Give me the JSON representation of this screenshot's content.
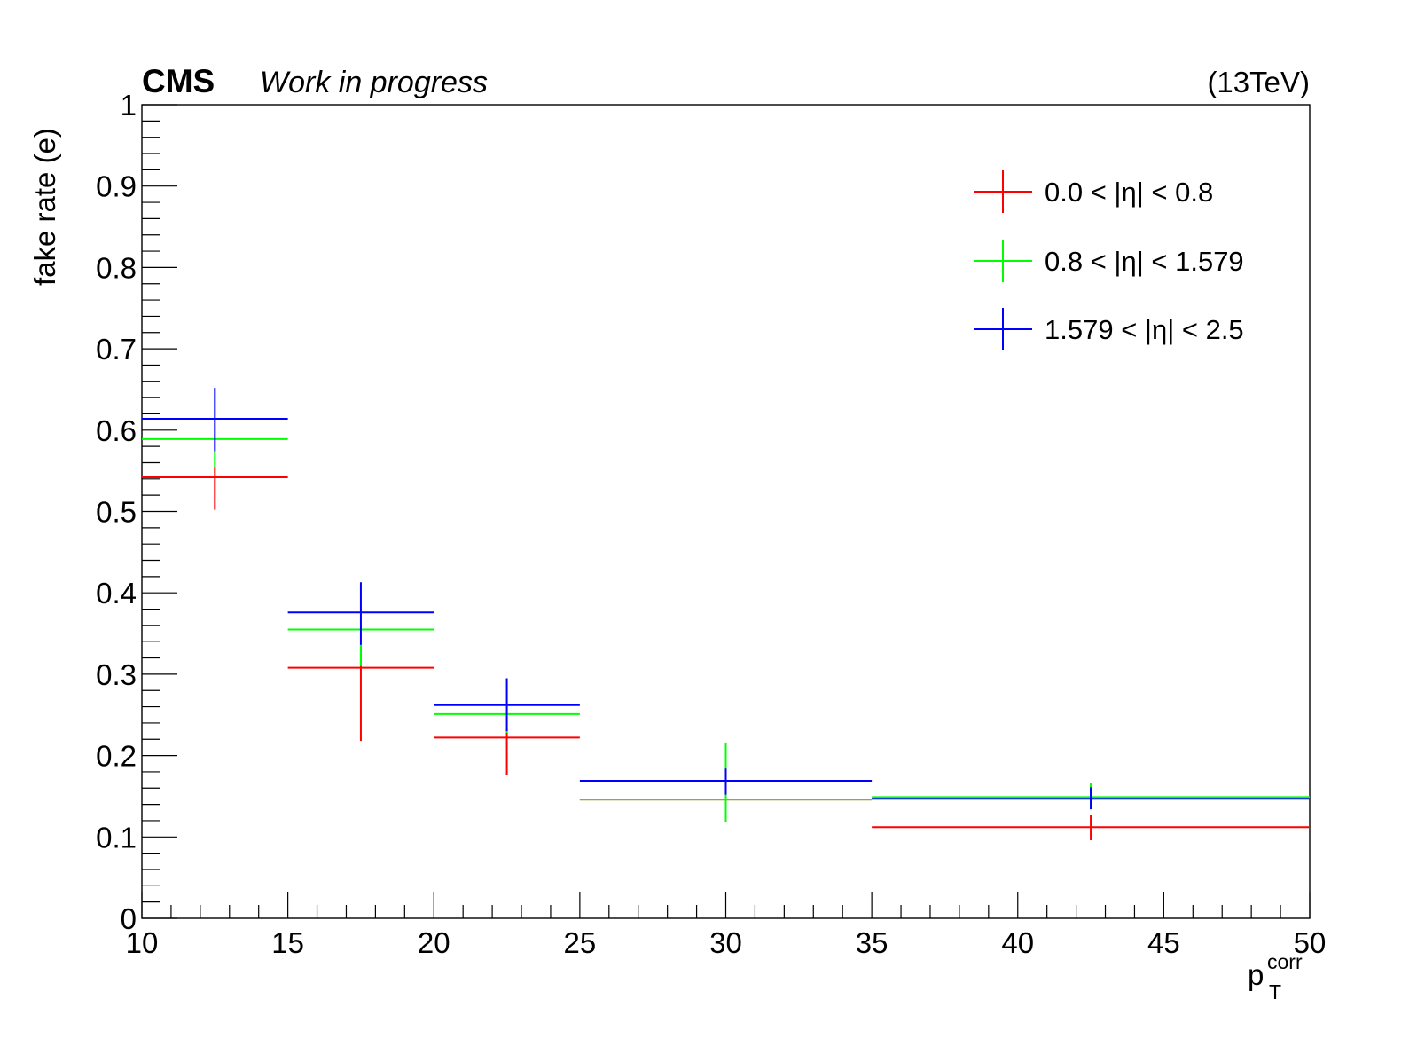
{
  "header": {
    "experiment": "CMS",
    "status": "Work in progress",
    "energy": "(13TeV)"
  },
  "chart_data": {
    "type": "scatter",
    "title": "",
    "xlabel": "p",
    "xlabel_sub": "T",
    "xlabel_sup": "corr",
    "ylabel": "fake rate (e)",
    "xlim": [
      10,
      50
    ],
    "ylim": [
      0,
      1
    ],
    "x_ticks": [
      "10",
      "15",
      "20",
      "25",
      "30",
      "35",
      "40",
      "45",
      "50"
    ],
    "y_ticks": [
      "0",
      "0.1",
      "0.2",
      "0.3",
      "0.4",
      "0.5",
      "0.6",
      "0.7",
      "0.8",
      "0.9",
      "1"
    ],
    "bin_edges": [
      10,
      15,
      20,
      25,
      35,
      50
    ],
    "grid": false,
    "legend_position": "top-right",
    "series": [
      {
        "name": "0.0 < |η| < 0.8",
        "color": "#ff0000",
        "points": [
          {
            "x": 12.5,
            "xlow": 10,
            "xhigh": 15,
            "y": 0.542,
            "ylow": 0.502,
            "yhigh": 0.555
          },
          {
            "x": 17.5,
            "xlow": 15,
            "xhigh": 20,
            "y": 0.308,
            "ylow": 0.218,
            "yhigh": 0.335
          },
          {
            "x": 22.5,
            "xlow": 20,
            "xhigh": 25,
            "y": 0.222,
            "ylow": 0.176,
            "yhigh": 0.232
          },
          {
            "x": 30,
            "xlow": 25,
            "xhigh": 35,
            "y": 0.146,
            "ylow": 0.119,
            "yhigh": 0.16
          },
          {
            "x": 42.5,
            "xlow": 35,
            "xhigh": 50,
            "y": 0.112,
            "ylow": 0.096,
            "yhigh": 0.127
          }
        ]
      },
      {
        "name": "0.8 < |η| < 1.579",
        "color": "#00ff00",
        "points": [
          {
            "x": 12.5,
            "xlow": 10,
            "xhigh": 15,
            "y": 0.589,
            "ylow": 0.555,
            "yhigh": 0.574
          },
          {
            "x": 17.5,
            "xlow": 15,
            "xhigh": 20,
            "y": 0.355,
            "ylow": 0.31,
            "yhigh": 0.336
          },
          {
            "x": 22.5,
            "xlow": 20,
            "xhigh": 25,
            "y": 0.251,
            "ylow": 0.228,
            "yhigh": 0.233
          },
          {
            "x": 30,
            "xlow": 25,
            "xhigh": 35,
            "y": 0.146,
            "ylow": 0.119,
            "yhigh": 0.216
          },
          {
            "x": 42.5,
            "xlow": 35,
            "xhigh": 50,
            "y": 0.149,
            "ylow": 0.134,
            "yhigh": 0.166
          }
        ]
      },
      {
        "name": "1.579 < |η| < 2.5",
        "color": "#0000ff",
        "points": [
          {
            "x": 12.5,
            "xlow": 10,
            "xhigh": 15,
            "y": 0.614,
            "ylow": 0.574,
            "yhigh": 0.652
          },
          {
            "x": 17.5,
            "xlow": 15,
            "xhigh": 20,
            "y": 0.376,
            "ylow": 0.336,
            "yhigh": 0.413
          },
          {
            "x": 22.5,
            "xlow": 20,
            "xhigh": 25,
            "y": 0.262,
            "ylow": 0.23,
            "yhigh": 0.295
          },
          {
            "x": 30,
            "xlow": 25,
            "xhigh": 35,
            "y": 0.169,
            "ylow": 0.152,
            "yhigh": 0.184
          },
          {
            "x": 42.5,
            "xlow": 35,
            "xhigh": 50,
            "y": 0.147,
            "ylow": 0.134,
            "yhigh": 0.161
          }
        ]
      }
    ]
  }
}
